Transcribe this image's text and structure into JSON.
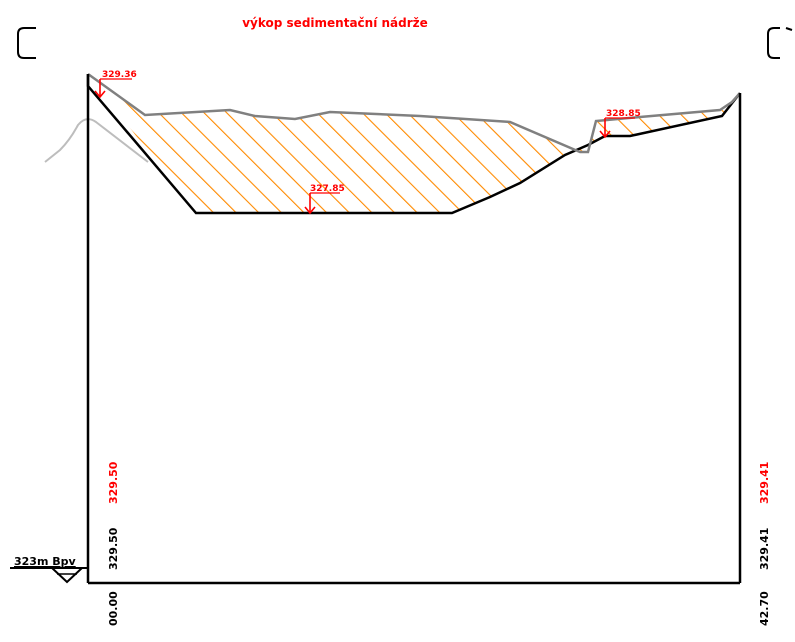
{
  "title": "výkop sedimentační nádrže",
  "datum_label": "323m Bpv",
  "levels": {
    "left_top": "329.36",
    "bottom": "327.85",
    "right_step": "328.85"
  },
  "bottom_table": {
    "left_design": "329.50",
    "left_terrain": "329.50",
    "left_station": "00.00",
    "right_design": "329.41",
    "right_terrain": "329.41",
    "right_station": "42.70"
  },
  "colors": {
    "title": "#ff0000",
    "hatch": "#ff8a00",
    "terrain": "#808080",
    "excavation": "#000000",
    "frame": "#000000",
    "marker": "#ff0000",
    "old_terrain": "#bdbdbd"
  }
}
